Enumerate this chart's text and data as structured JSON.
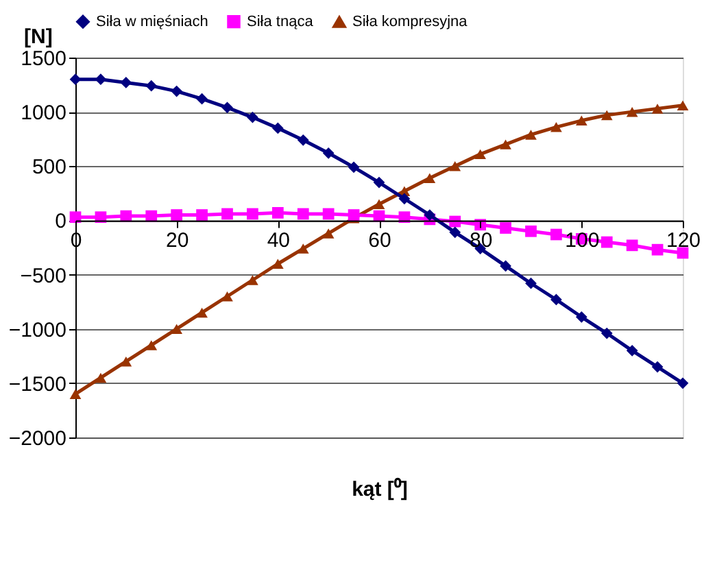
{
  "chart_data": {
    "type": "line",
    "xlabel": "kąt [⁰]",
    "ylabel": "[N]",
    "x": [
      0,
      5,
      10,
      15,
      20,
      25,
      30,
      35,
      40,
      45,
      50,
      55,
      60,
      65,
      70,
      75,
      80,
      85,
      90,
      95,
      100,
      105,
      110,
      115,
      120
    ],
    "series": [
      {
        "name": "Siła w mięśniach",
        "color": "#000080",
        "marker": "diamond",
        "values": [
          1300,
          1300,
          1270,
          1240,
          1190,
          1120,
          1040,
          950,
          850,
          740,
          620,
          490,
          350,
          200,
          50,
          -110,
          -260,
          -420,
          -580,
          -730,
          -890,
          -1040,
          -1200,
          -1350,
          -1500
        ]
      },
      {
        "name": "Siła tnąca",
        "color": "#ff00ff",
        "marker": "square",
        "values": [
          30,
          30,
          40,
          40,
          50,
          50,
          60,
          60,
          70,
          60,
          60,
          50,
          40,
          30,
          10,
          -10,
          -40,
          -70,
          -100,
          -130,
          -170,
          -200,
          -230,
          -270,
          -300
        ]
      },
      {
        "name": "Siła kompresyjna",
        "color": "#993300",
        "marker": "triangle",
        "values": [
          -1600,
          -1450,
          -1300,
          -1150,
          -1000,
          -850,
          -700,
          -550,
          -400,
          -260,
          -120,
          20,
          150,
          270,
          390,
          500,
          610,
          700,
          790,
          860,
          920,
          970,
          1000,
          1030,
          1060
        ]
      }
    ],
    "xlim": [
      0,
      120
    ],
    "xticks": [
      0,
      20,
      40,
      60,
      80,
      100,
      120
    ],
    "ylim": [
      -2000,
      1500
    ],
    "yticks": [
      -2000,
      -1500,
      -1000,
      -500,
      0,
      500,
      1000,
      1500
    ],
    "grid": "y",
    "legend": "top",
    "line_style": "solid"
  }
}
